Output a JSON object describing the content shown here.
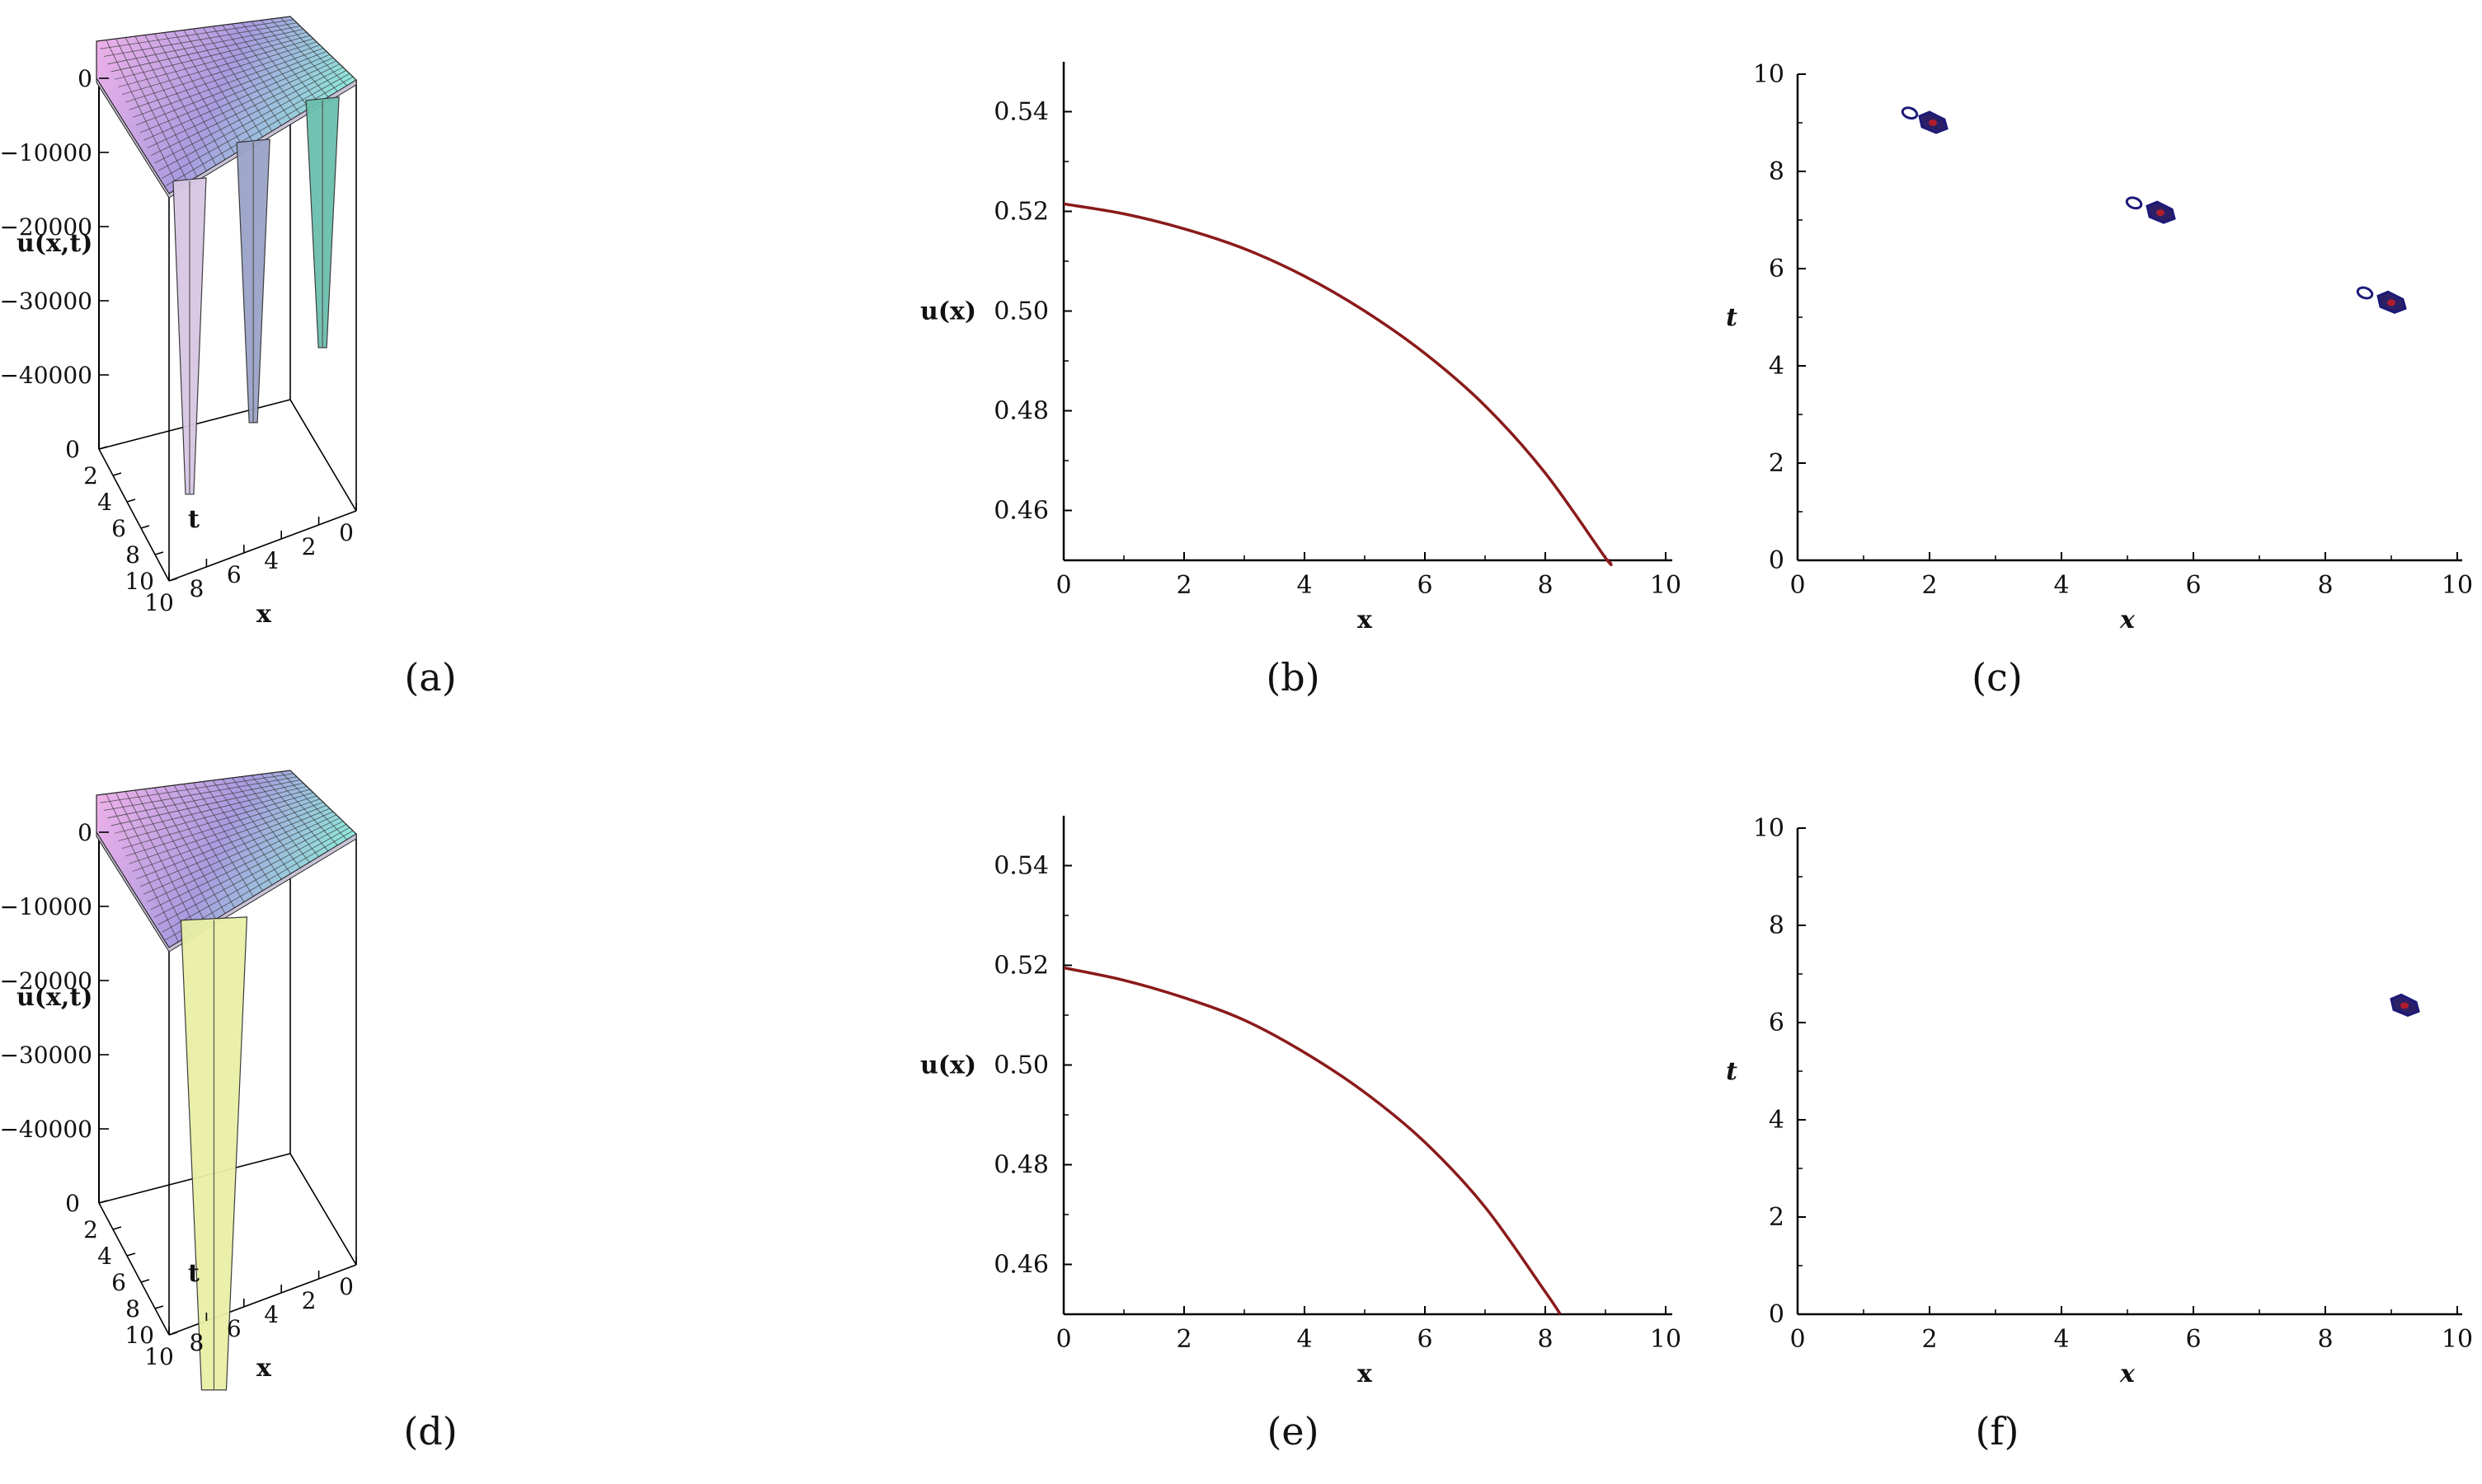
{
  "captions": [
    "(a)",
    "(b)",
    "(c)",
    "(d)",
    "(e)",
    "(f)"
  ],
  "chart_data": [
    {
      "id": "a",
      "type": "surface3d",
      "zlabel": "u(x,t)",
      "xlabel": "x",
      "ylabel": "t",
      "z_ticks": [
        "0",
        "−10000",
        "−20000",
        "−30000",
        "−40000"
      ],
      "t_ticks": [
        "0",
        "2",
        "4",
        "6",
        "8",
        "10"
      ],
      "x_ticks": [
        "10",
        "8",
        "6",
        "4",
        "2",
        "0"
      ],
      "colors": {
        "pink": "#f3b2ea",
        "violet": "#a99bdf",
        "teal": "#8fe6da"
      },
      "spike_x": [
        8.9,
        5.5,
        1.8
      ]
    },
    {
      "id": "b",
      "type": "line",
      "xlabel": "x",
      "ylabel": "u(x)",
      "xlim": [
        0,
        10
      ],
      "ylim": [
        0.45,
        0.55
      ],
      "x_ticks": [
        "0",
        "2",
        "4",
        "6",
        "8",
        "10"
      ],
      "y_ticks": [
        "0.46",
        "0.48",
        "0.50",
        "0.52",
        "0.54"
      ],
      "color": "#8b1a1a",
      "x": [
        0,
        1,
        2,
        3,
        4,
        5,
        6,
        7,
        8,
        9,
        9.06
      ],
      "y": [
        0.5215,
        0.5195,
        0.5165,
        0.5125,
        0.507,
        0.5,
        0.4915,
        0.481,
        0.4675,
        0.4505,
        0.45
      ]
    },
    {
      "id": "c",
      "type": "contour",
      "xlabel": "x",
      "ylabel": "t",
      "xlim": [
        0,
        10
      ],
      "ylim": [
        0,
        10
      ],
      "x_ticks": [
        "0",
        "2",
        "4",
        "6",
        "8",
        "10"
      ],
      "y_ticks": [
        "0",
        "2",
        "4",
        "6",
        "8",
        "10"
      ],
      "colors": {
        "outline": "#1c1a78",
        "fill": "#2b2066",
        "core": "#b01e2e"
      },
      "rings": [
        [
          1.7,
          9.2
        ],
        [
          5.1,
          7.35
        ],
        [
          8.6,
          5.5
        ]
      ],
      "blobs": [
        [
          2.05,
          9.0
        ],
        [
          5.5,
          7.15
        ],
        [
          9.0,
          5.3
        ]
      ]
    },
    {
      "id": "d",
      "type": "surface3d",
      "zlabel": "u(x,t)",
      "xlabel": "x",
      "ylabel": "t",
      "z_ticks": [
        "0",
        "−10000",
        "−20000",
        "−30000",
        "−40000"
      ],
      "t_ticks": [
        "0",
        "2",
        "4",
        "6",
        "8",
        "10"
      ],
      "x_ticks": [
        "10",
        "8",
        "6",
        "4",
        "2",
        "0"
      ],
      "colors": {
        "pink": "#f3b2ea",
        "violet": "#a99bdf",
        "teal": "#8fe6da"
      },
      "spike_x": [
        7.6
      ]
    },
    {
      "id": "e",
      "type": "line",
      "xlabel": "x",
      "ylabel": "u(x)",
      "xlim": [
        0,
        10
      ],
      "ylim": [
        0.45,
        0.55
      ],
      "x_ticks": [
        "0",
        "2",
        "4",
        "6",
        "8",
        "10"
      ],
      "y_ticks": [
        "0.46",
        "0.48",
        "0.50",
        "0.52",
        "0.54"
      ],
      "color": "#8b1a1a",
      "x": [
        0,
        1,
        2,
        3,
        4,
        5,
        6,
        7,
        8,
        8.25
      ],
      "y": [
        0.5195,
        0.517,
        0.5135,
        0.509,
        0.5025,
        0.4945,
        0.4845,
        0.4715,
        0.4545,
        0.45
      ]
    },
    {
      "id": "f",
      "type": "contour",
      "xlabel": "x",
      "ylabel": "t",
      "xlim": [
        0,
        10
      ],
      "ylim": [
        0,
        10
      ],
      "x_ticks": [
        "0",
        "2",
        "4",
        "6",
        "8",
        "10"
      ],
      "y_ticks": [
        "0",
        "2",
        "4",
        "6",
        "8",
        "10"
      ],
      "colors": {
        "outline": "#1c1a78",
        "fill": "#2b2066",
        "core": "#b01e2e"
      },
      "rings": [],
      "blobs": [
        [
          9.2,
          6.35
        ]
      ]
    }
  ]
}
